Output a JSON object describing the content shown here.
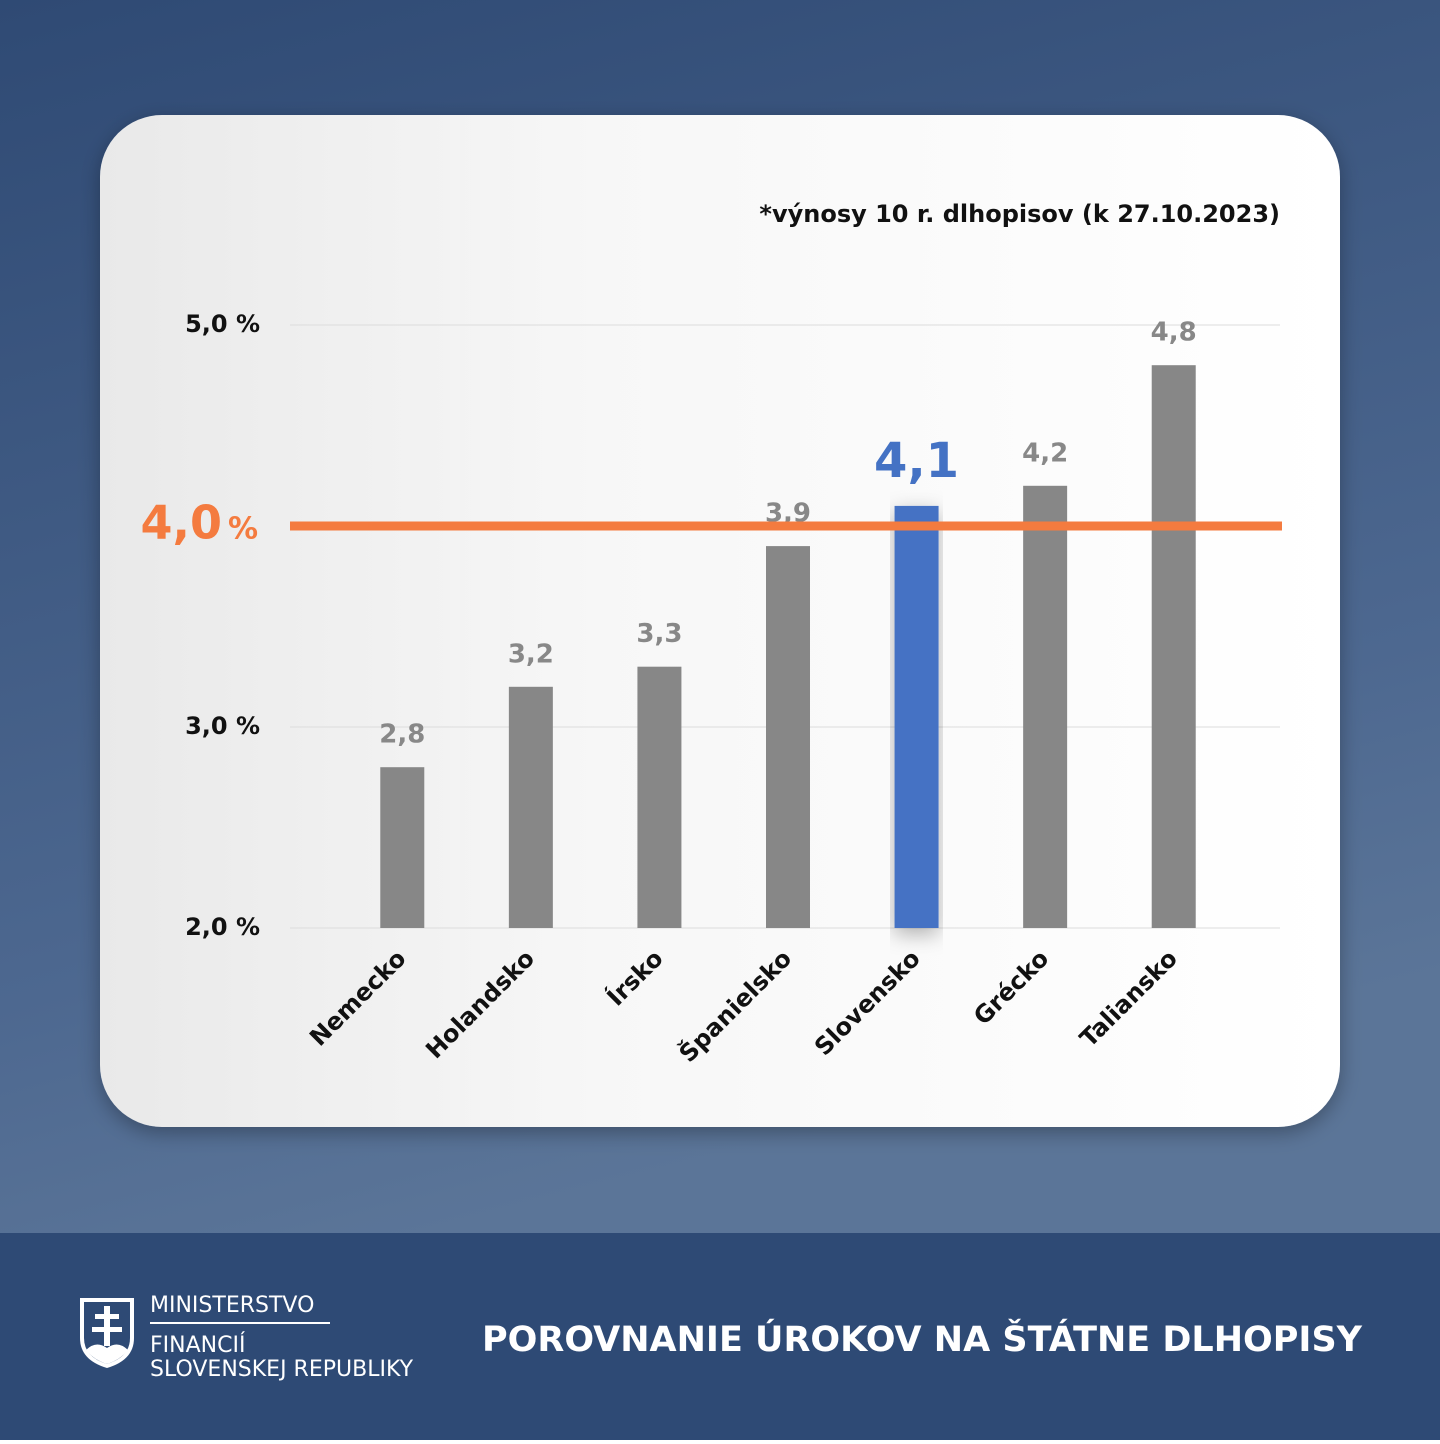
{
  "chart_data": {
    "type": "bar",
    "title": "POROVNANIE ÚROKOV NA ŠTÁTNE DLHOPISY",
    "note": "*výnosy 10 r. dlhopisov (k 27.10.2023)",
    "categories": [
      "Nemecko",
      "Holandsko",
      "Írsko",
      "Španielsko",
      "Slovensko",
      "Grécko",
      "Taliansko"
    ],
    "values": [
      2.8,
      3.2,
      3.3,
      3.9,
      4.1,
      4.2,
      4.8
    ],
    "value_labels": [
      "2,8",
      "3,2",
      "3,3",
      "3,9",
      "4,1",
      "4,2",
      "4,8"
    ],
    "colors": [
      "#878787",
      "#878787",
      "#878787",
      "#878787",
      "#4472c4",
      "#878787",
      "#878787"
    ],
    "highlight_color": "#4472c4",
    "ylim": [
      2,
      5
    ],
    "yticks": [
      {
        "value": 2,
        "label": "2,0 %"
      },
      {
        "value": 3,
        "label": "3,0 %"
      },
      {
        "value": 5,
        "label": "5,0 %"
      }
    ],
    "grid": true,
    "reference_line": {
      "value": 4,
      "label": "4,0",
      "unit_label": "%",
      "color": "#f47b3f"
    }
  },
  "footer": {
    "org": [
      "MINISTERSTVO",
      "FINANCIÍ",
      "SLOVENSKEJ REPUBLIKY"
    ]
  }
}
